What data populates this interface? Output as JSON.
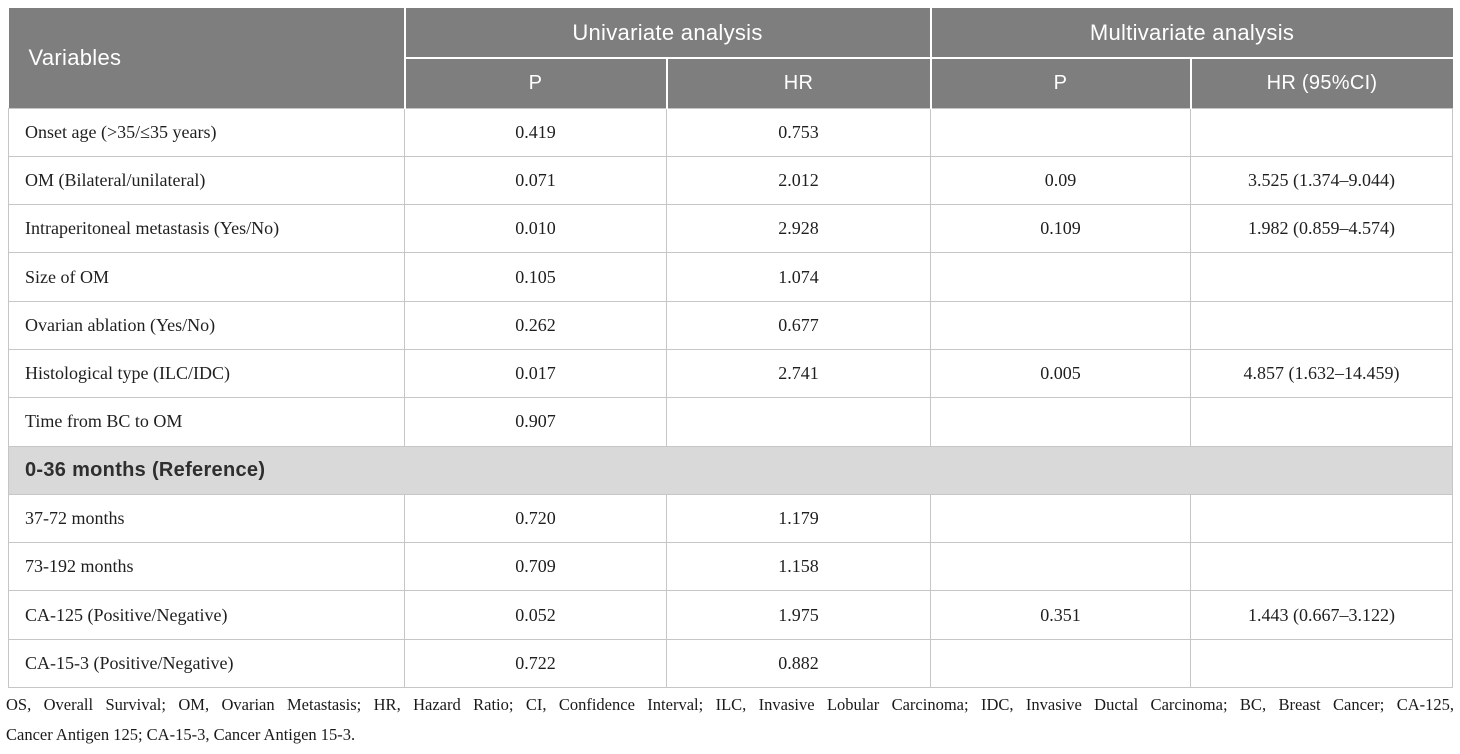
{
  "colors": {
    "header_bg": "#7e7e7e",
    "header_text": "#ffffff",
    "section_bg": "#d9d9d9",
    "grid_line": "#c6c6c6",
    "body_text": "#1f1f1f"
  },
  "table": {
    "header": {
      "variables_label": "Variables",
      "groups": [
        {
          "label": "Univariate analysis",
          "sub": [
            "P",
            "HR"
          ]
        },
        {
          "label": "Multivariate analysis",
          "sub": [
            "P",
            "HR (95%CI)"
          ]
        }
      ]
    },
    "rows": [
      {
        "type": "data",
        "variable": "Onset age (>35/≤35 years)",
        "uni_p": "0.419",
        "uni_hr": "0.753",
        "multi_p": "",
        "multi_hr": ""
      },
      {
        "type": "data",
        "variable": "OM (Bilateral/unilateral)",
        "uni_p": "0.071",
        "uni_hr": "2.012",
        "multi_p": "0.09",
        "multi_hr": "3.525 (1.374–9.044)"
      },
      {
        "type": "data",
        "variable": "Intraperitoneal metastasis (Yes/No)",
        "uni_p": "0.010",
        "uni_hr": "2.928",
        "multi_p": "0.109",
        "multi_hr": "1.982 (0.859–4.574)"
      },
      {
        "type": "data",
        "variable": "Size of OM",
        "uni_p": "0.105",
        "uni_hr": "1.074",
        "multi_p": "",
        "multi_hr": ""
      },
      {
        "type": "data",
        "variable": "Ovarian ablation (Yes/No)",
        "uni_p": "0.262",
        "uni_hr": "0.677",
        "multi_p": "",
        "multi_hr": ""
      },
      {
        "type": "data",
        "variable": "Histological type (ILC/IDC)",
        "uni_p": "0.017",
        "uni_hr": "2.741",
        "multi_p": "0.005",
        "multi_hr": "4.857 (1.632–14.459)"
      },
      {
        "type": "data",
        "variable": "Time from BC to OM",
        "uni_p": "0.907",
        "uni_hr": "",
        "multi_p": "",
        "multi_hr": ""
      },
      {
        "type": "section",
        "variable": "0-36 months (Reference)"
      },
      {
        "type": "data",
        "variable": "37-72 months",
        "uni_p": "0.720",
        "uni_hr": "1.179",
        "multi_p": "",
        "multi_hr": ""
      },
      {
        "type": "data",
        "variable": "73-192 months",
        "uni_p": "0.709",
        "uni_hr": "1.158",
        "multi_p": "",
        "multi_hr": ""
      },
      {
        "type": "data",
        "variable": "CA-125 (Positive/Negative)",
        "uni_p": "0.052",
        "uni_hr": "1.975",
        "multi_p": "0.351",
        "multi_hr": "1.443 (0.667–3.122)"
      },
      {
        "type": "data",
        "variable": "CA-15-3 (Positive/Negative)",
        "uni_p": "0.722",
        "uni_hr": "0.882",
        "multi_p": "",
        "multi_hr": ""
      }
    ]
  },
  "footnote": {
    "line1": "OS, Overall Survival; OM, Ovarian Metastasis; HR, Hazard Ratio; CI, Confidence Interval; ILC, Invasive Lobular Carcinoma; IDC, Invasive Ductal Carcinoma; BC, Breast Cancer; CA-125,",
    "line2": "Cancer Antigen 125; CA-15-3, Cancer Antigen 15-3."
  }
}
